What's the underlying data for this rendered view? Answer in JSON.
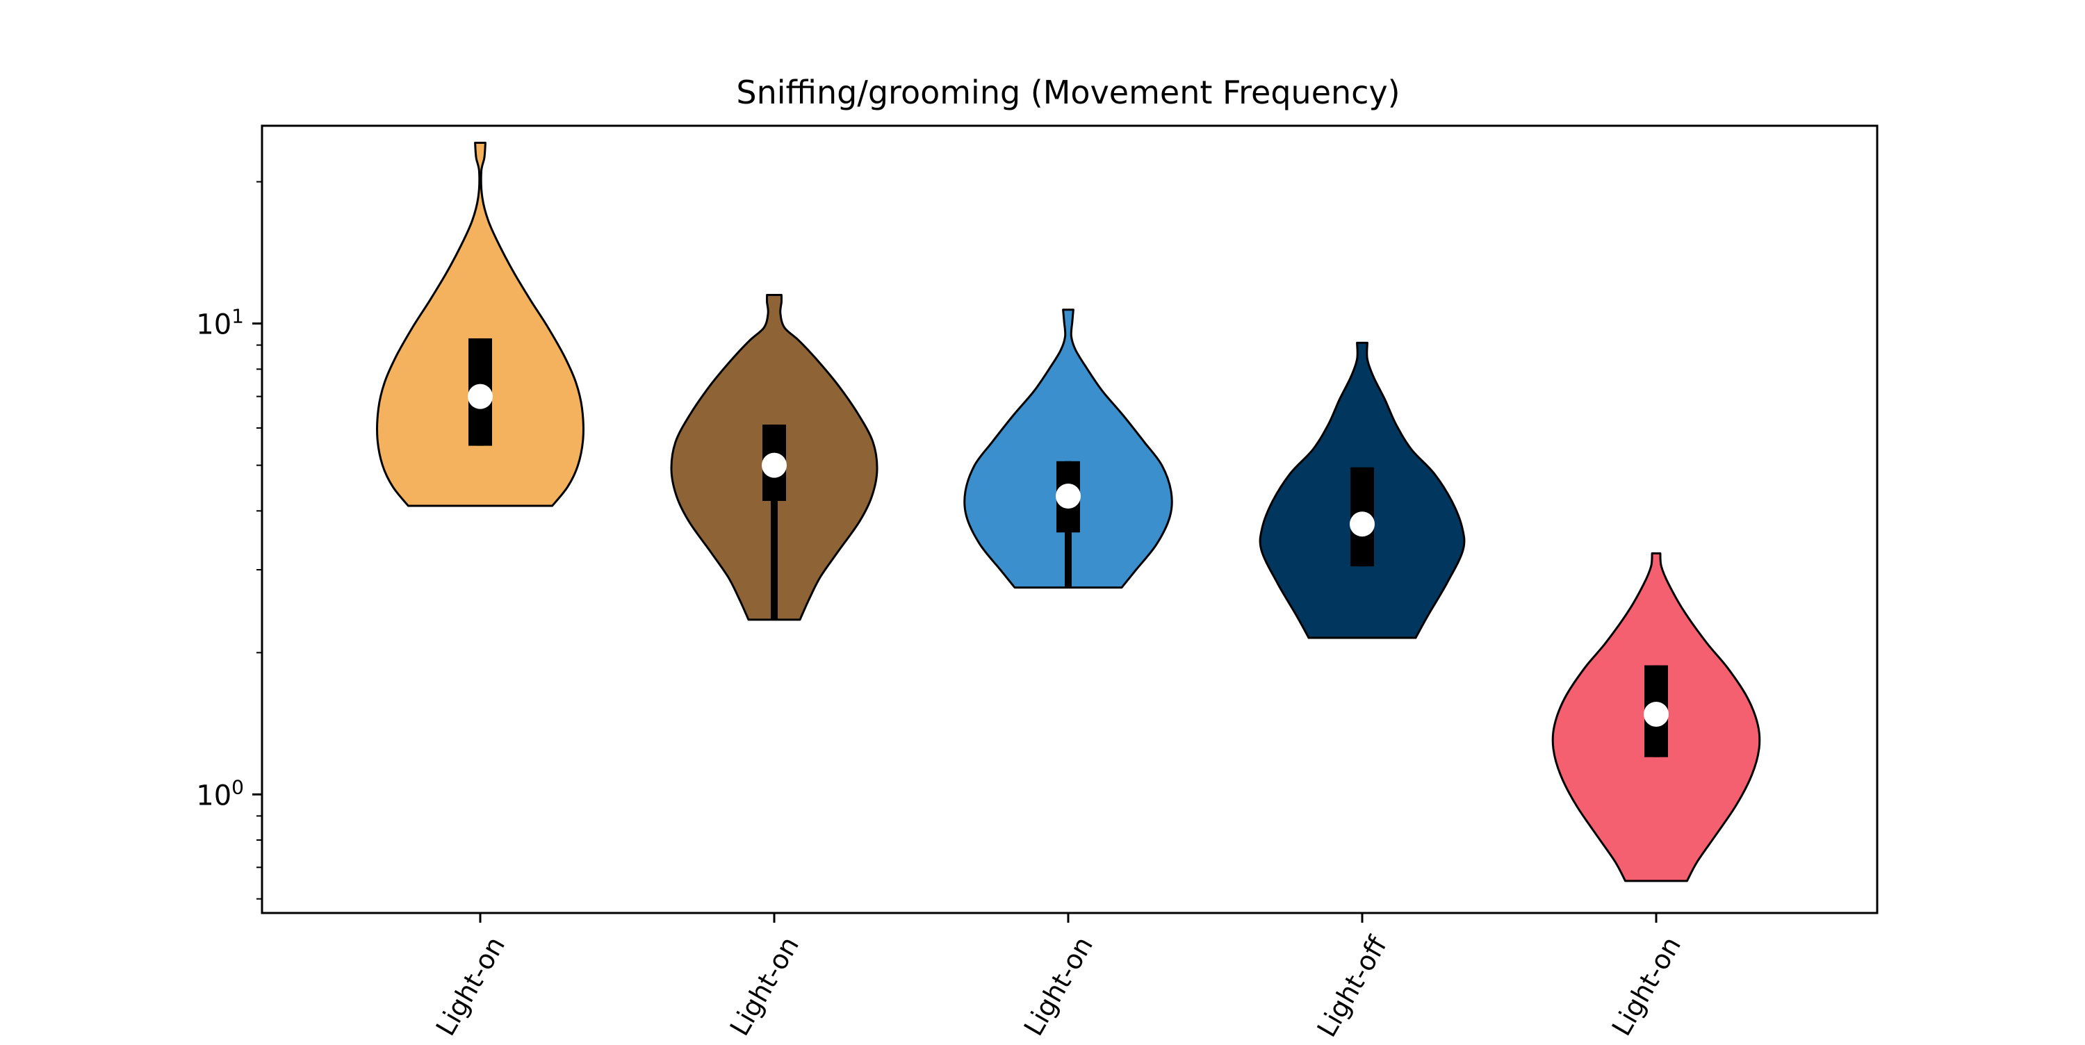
{
  "chart_data": {
    "type": "violin",
    "title": "Sniffing/grooming (Movement Frequency)",
    "xlabel": "",
    "ylabel": "",
    "yscale": "log",
    "ylim": [
      0.56,
      26.3
    ],
    "y_major_ticks": [
      {
        "value": 1,
        "base": "10",
        "exp": "0"
      },
      {
        "value": 10,
        "base": "10",
        "exp": "1"
      }
    ],
    "y_minor_ticks": [
      0.6,
      0.7,
      0.8,
      0.9,
      2,
      3,
      4,
      5,
      6,
      7,
      8,
      9,
      20
    ],
    "grid": false,
    "categories": [
      "Light-on",
      "Light-on",
      "Light-on",
      "Light-off",
      "Light-on"
    ],
    "series": [
      {
        "color": "#f4b25f",
        "min": 4.1,
        "max": 24.2,
        "q1": 5.5,
        "median": 7.0,
        "q3": 9.3,
        "whisker_low": 5.5,
        "whisker_high": 9.3,
        "density": [
          [
            4.1,
            0.7
          ],
          [
            4.5,
            0.85
          ],
          [
            5.0,
            0.95
          ],
          [
            5.7,
            1.0
          ],
          [
            6.6,
            0.99
          ],
          [
            7.5,
            0.93
          ],
          [
            8.5,
            0.82
          ],
          [
            9.8,
            0.66
          ],
          [
            11.2,
            0.49
          ],
          [
            12.8,
            0.33
          ],
          [
            14.6,
            0.19
          ],
          [
            16.5,
            0.08
          ],
          [
            18.5,
            0.02
          ],
          [
            21.0,
            0.01
          ],
          [
            22.5,
            0.04
          ],
          [
            24.2,
            0.05
          ]
        ]
      },
      {
        "color": "#8e6436",
        "min": 2.35,
        "max": 11.5,
        "q1": 4.2,
        "median": 5.0,
        "q3": 6.1,
        "whisker_low": 2.35,
        "whisker_high": 6.1,
        "density": [
          [
            2.35,
            0.25
          ],
          [
            2.6,
            0.34
          ],
          [
            2.9,
            0.45
          ],
          [
            3.3,
            0.63
          ],
          [
            3.8,
            0.83
          ],
          [
            4.3,
            0.95
          ],
          [
            4.9,
            1.0
          ],
          [
            5.6,
            0.96
          ],
          [
            6.4,
            0.82
          ],
          [
            7.4,
            0.62
          ],
          [
            8.4,
            0.41
          ],
          [
            9.2,
            0.24
          ],
          [
            9.8,
            0.1
          ],
          [
            10.5,
            0.06
          ],
          [
            11.1,
            0.07
          ],
          [
            11.5,
            0.07
          ]
        ]
      },
      {
        "color": "#3a8fcc",
        "min": 2.75,
        "max": 10.7,
        "q1": 3.6,
        "median": 4.3,
        "q3": 5.1,
        "whisker_low": 2.75,
        "whisker_high": 5.1,
        "density": [
          [
            2.75,
            0.52
          ],
          [
            3.0,
            0.66
          ],
          [
            3.4,
            0.86
          ],
          [
            3.9,
            0.99
          ],
          [
            4.4,
            1.0
          ],
          [
            5.0,
            0.91
          ],
          [
            5.6,
            0.74
          ],
          [
            6.4,
            0.53
          ],
          [
            7.2,
            0.33
          ],
          [
            8.1,
            0.17
          ],
          [
            8.8,
            0.07
          ],
          [
            9.4,
            0.03
          ],
          [
            10.1,
            0.04
          ],
          [
            10.7,
            0.05
          ]
        ]
      },
      {
        "color": "#01365f",
        "min": 2.15,
        "max": 9.1,
        "q1": 3.05,
        "median": 3.75,
        "q3": 4.95,
        "whisker_low": 3.05,
        "whisker_high": 4.95,
        "density": [
          [
            2.15,
            0.52
          ],
          [
            2.4,
            0.64
          ],
          [
            2.8,
            0.82
          ],
          [
            3.3,
            0.98
          ],
          [
            3.7,
            0.97
          ],
          [
            4.2,
            0.87
          ],
          [
            4.8,
            0.7
          ],
          [
            5.4,
            0.48
          ],
          [
            6.1,
            0.33
          ],
          [
            6.9,
            0.22
          ],
          [
            7.7,
            0.11
          ],
          [
            8.4,
            0.05
          ],
          [
            9.1,
            0.05
          ]
        ]
      },
      {
        "color": "#f46070",
        "min": 0.655,
        "max": 3.25,
        "q1": 1.2,
        "median": 1.48,
        "q3": 1.88,
        "whisker_low": 1.2,
        "whisker_high": 1.88,
        "density": [
          [
            0.655,
            0.3
          ],
          [
            0.72,
            0.4
          ],
          [
            0.82,
            0.58
          ],
          [
            0.95,
            0.78
          ],
          [
            1.1,
            0.93
          ],
          [
            1.25,
            1.0
          ],
          [
            1.4,
            0.99
          ],
          [
            1.6,
            0.89
          ],
          [
            1.85,
            0.7
          ],
          [
            2.1,
            0.49
          ],
          [
            2.45,
            0.27
          ],
          [
            2.8,
            0.12
          ],
          [
            3.05,
            0.05
          ],
          [
            3.25,
            0.04
          ]
        ]
      }
    ]
  }
}
